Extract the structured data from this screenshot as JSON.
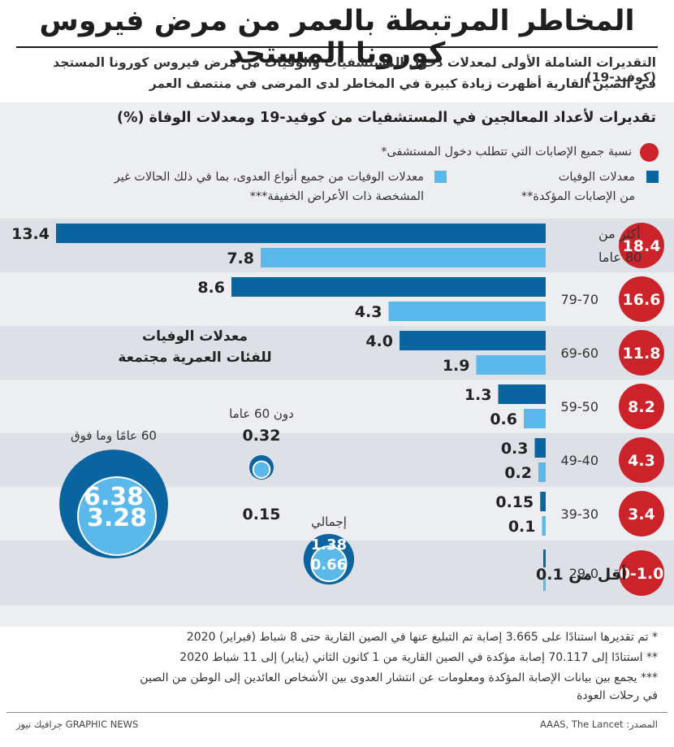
{
  "title": "المخاطر المرتبطة بالعمر من مرض فيروس كورونا المستجد",
  "subtitle_line1": "التقديرات الشاملة الأولى لمعدلات دخول المستشفيات والوفيات من مرض فيروس كورونا المستجد (كوفيد-19)",
  "subtitle_line2": "في الصين القارية أظهرت زيادة كبيرة في المخاطر لدى المرضى في منتصف العمر",
  "panel_title": "تقديرات لأعداد المعالجين في المستشفيات من كوفيد-19 ومعدلات الوفاة (%)",
  "legend": {
    "hospital": "نسبة جميع الإصابات التي تتطلب دخول المستشفى*",
    "confirmed_line1": "معدلات الوفيات",
    "confirmed_line2": "من الإصابات المؤكدة**",
    "all_line1": "معدلات الوفيات من جميع أنواع العدوى، بما في ذلك الحالات غير",
    "all_line2": "المشخصة ذات الأعراض الخفيفة***"
  },
  "colors": {
    "red": "#cc2229",
    "dark_blue": "#0a64a0",
    "light_blue": "#5bb8ea",
    "band": "#dde1e7",
    "panel": "#eceef1"
  },
  "chart_data": [
    {
      "type": "bar",
      "orientation": "horizontal",
      "categories": [
        "أكثر من 80 عاما",
        "79-70",
        "69-60",
        "59-50",
        "49-40",
        "39-30",
        "29-0"
      ],
      "hospitalization_labels": [
        "18.4",
        "16.6",
        "11.8",
        "8.2",
        "4.3",
        "3.4",
        "0-1.0"
      ],
      "series": [
        {
          "name": "معدلات الوفيات من الإصابات المؤكدة**",
          "values": [
            13.4,
            8.6,
            4.0,
            1.3,
            0.3,
            0.15,
            null
          ],
          "labels": [
            "13.4",
            "8.6",
            "4.0",
            "1.3",
            "0.3",
            "0.15",
            ""
          ]
        },
        {
          "name": "معدلات الوفيات من جميع أنواع العدوى، بما في ذلك الحالات غير المشخصة ذات الأعراض الخفيفة***",
          "values": [
            7.8,
            4.3,
            1.9,
            0.6,
            0.2,
            0.1,
            null
          ],
          "labels": [
            "7.8",
            "4.3",
            "1.9",
            "0.6",
            "0.2",
            "0.1",
            ""
          ]
        }
      ],
      "under_label": "أقل من 0.1",
      "cat_first_line1": "أكثر من",
      "cat_first_line2": "80 عاما"
    },
    {
      "type": "bubble",
      "title_line1": "معدلات الوفيات",
      "title_line2": "للفئات العمرية مجتمعة",
      "groups": [
        {
          "label": "60 عامًا وما فوق",
          "confirmed": 6.38,
          "all": 3.28,
          "confirmed_label": "6.38",
          "all_label": "3.28"
        },
        {
          "label": "دون 60 عاما",
          "confirmed": 0.32,
          "all": 0.15,
          "confirmed_label": "0.32",
          "all_label": "0.15"
        },
        {
          "label": "إجمالي",
          "confirmed": 1.38,
          "all": 0.66,
          "confirmed_label": "1.38",
          "all_label": "0.66"
        }
      ]
    }
  ],
  "notes": [
    "* تم تقديرها استنادًا على 3.665 إصابة تم التبليغ عنها في الصين القارية حتى 8 شباط (فبراير) 2020",
    "** استنادًا إلى 70.117 إصابة مؤكدة في الصين القارية من 1 كانون الثاني (يناير) إلى 11 شباط 2020",
    "*** يجمع بين بيانات الإصابة المؤكدة ومعلومات عن انتشار العدوى بين الأشخاص العائدين إلى الوطن من الصين",
    "في رحلات العودة"
  ],
  "source": "المصدر: AAAS, The Lancet",
  "credit": "جرافيك نيوز GRAPHIC NEWS"
}
